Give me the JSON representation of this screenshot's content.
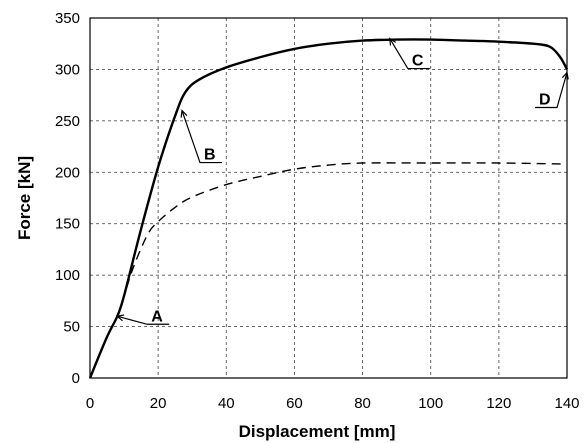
{
  "chart_data": {
    "type": "line",
    "xlabel": "Displacement [mm]",
    "ylabel": "Force  [kN]",
    "xlim": [
      0,
      140
    ],
    "ylim": [
      0,
      350
    ],
    "xticks": [
      0,
      20,
      40,
      60,
      80,
      100,
      120,
      140
    ],
    "yticks": [
      0,
      50,
      100,
      150,
      200,
      250,
      300,
      350
    ],
    "grid": true,
    "series": [
      {
        "style": "solid",
        "x": [
          0,
          5,
          8,
          10,
          15,
          20,
          25,
          28,
          32,
          40,
          50,
          60,
          70,
          80,
          90,
          100,
          110,
          120,
          130,
          135,
          138,
          140
        ],
        "y": [
          0,
          40,
          60,
          80,
          145,
          205,
          255,
          278,
          290,
          302,
          312,
          320,
          325,
          328,
          329,
          329,
          328,
          327,
          325,
          322,
          312,
          300
        ]
      },
      {
        "style": "dashed",
        "x": [
          8,
          10,
          13,
          17,
          20,
          25,
          30,
          40,
          50,
          60,
          70,
          80,
          100,
          120,
          140
        ],
        "y": [
          60,
          80,
          110,
          140,
          152,
          166,
          176,
          188,
          196,
          203,
          207,
          209,
          209,
          209,
          208
        ]
      }
    ],
    "annotations": [
      {
        "label": "A",
        "x": 8,
        "y": 60
      },
      {
        "label": "B",
        "x": 27,
        "y": 260
      },
      {
        "label": "C",
        "x": 88,
        "y": 330
      },
      {
        "label": "D",
        "x": 140,
        "y": 297
      }
    ]
  }
}
